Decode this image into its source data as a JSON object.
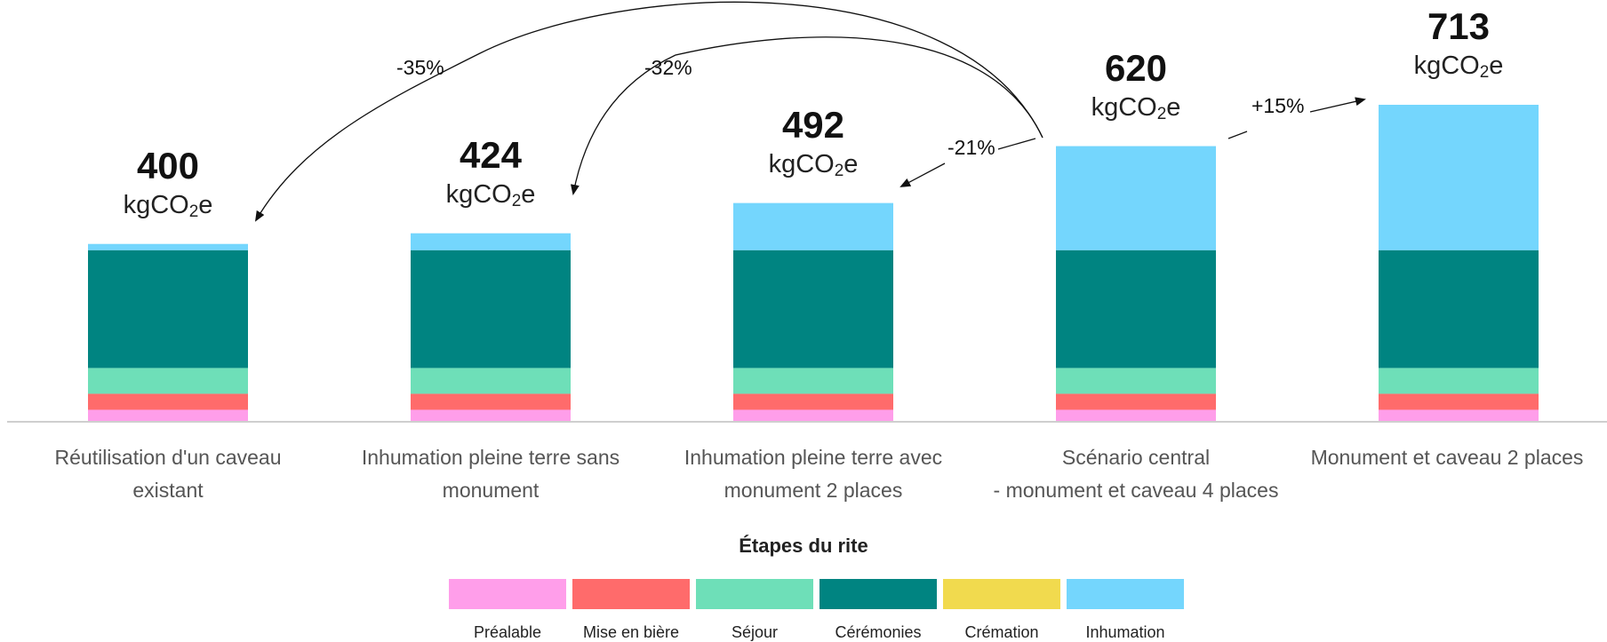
{
  "chart_data": {
    "type": "bar",
    "stacked": true,
    "categories": [
      "Réutilisation d'un caveau\nexistant",
      "Inhumation pleine terre sans\nmonument",
      "Inhumation pleine terre avec\nmonument 2 places",
      "Scénario central\n- monument et caveau 4 places",
      "Monument et caveau 2 places"
    ],
    "series": [
      {
        "name": "Préalable",
        "color": "#FF9EEA",
        "values": [
          27,
          27,
          27,
          27,
          27
        ]
      },
      {
        "name": "Mise en bière",
        "color": "#FF6B6B",
        "values": [
          36,
          36,
          36,
          36,
          36
        ]
      },
      {
        "name": "Séjour",
        "color": "#6EDFB8",
        "values": [
          58,
          58,
          58,
          58,
          58
        ]
      },
      {
        "name": "Cérémonies",
        "color": "#008481",
        "values": [
          265,
          265,
          265,
          265,
          265
        ]
      },
      {
        "name": "Crémation",
        "color": "#F1DA4E",
        "values": [
          0,
          0,
          0,
          0,
          0
        ]
      },
      {
        "name": "Inhumation",
        "color": "#74D6FD",
        "values": [
          14,
          38,
          106,
          234,
          327
        ]
      }
    ],
    "totals": [
      "400",
      "424",
      "492",
      "620",
      "713"
    ],
    "unit_prefix": "kgCO",
    "unit_sub": "2",
    "unit_suffix": "e",
    "comparisons": [
      {
        "label": "-35%",
        "from": 3,
        "to": 0
      },
      {
        "label": "-32%",
        "from": 3,
        "to": 1
      },
      {
        "label": "-21%",
        "from": 3,
        "to": 2
      },
      {
        "label": "+15%",
        "from": 3,
        "to": 4
      }
    ],
    "legend_title": "Étapes du rite",
    "legend_position": "bottom",
    "ylim": [
      0,
      713
    ],
    "grid": false
  }
}
